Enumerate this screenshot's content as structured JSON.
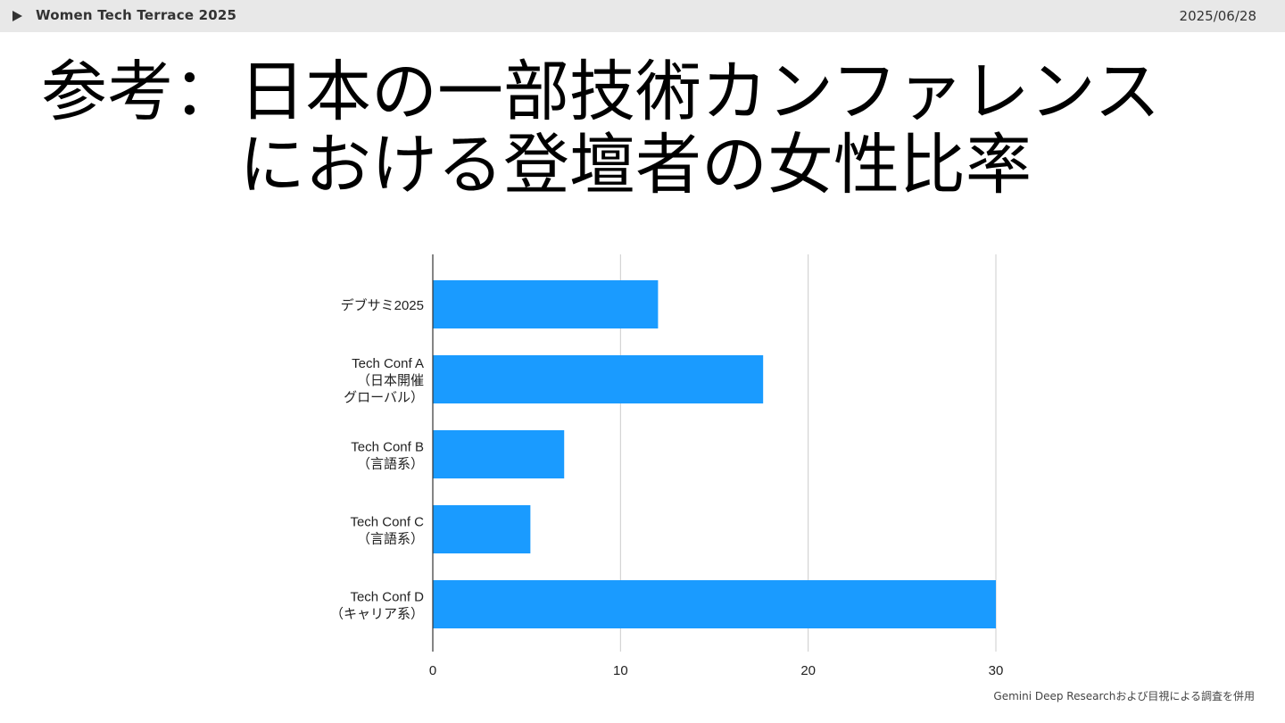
{
  "header": {
    "event_name": "Women Tech Terrace 2025",
    "date": "2025/06/28"
  },
  "slide": {
    "title_line1": "参考：日本の一部技術カンファレンス",
    "title_line2": "における登壇者の女性比率",
    "footer_note": "Gemini Deep Researchおよび目視による調査を併用"
  },
  "colors": {
    "bar": "#1a9bff",
    "grid": "#cccccc",
    "axis": "#333333"
  },
  "chart_data": {
    "type": "bar",
    "orientation": "horizontal",
    "categories": [
      [
        "デブサミ2025"
      ],
      [
        "Tech Conf A",
        "（日本開催",
        "グローバル）"
      ],
      [
        "Tech Conf B",
        "（言語系）"
      ],
      [
        "Tech Conf C",
        "（言語系）"
      ],
      [
        "Tech Conf D",
        "（キャリア系）"
      ]
    ],
    "values": [
      12,
      17.6,
      7,
      5.2,
      30
    ],
    "xlim": [
      0,
      30
    ],
    "xticks": [
      0,
      10,
      20,
      30
    ],
    "grid": true,
    "legend": "none"
  }
}
